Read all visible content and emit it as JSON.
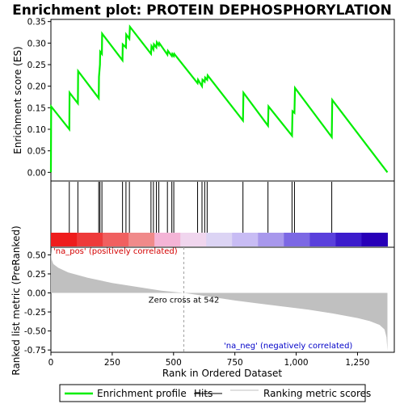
{
  "chart_data": {
    "type": "line",
    "title": "Enrichment plot: PROTEIN DEPHOSPHORYLATION",
    "xlabel": "Rank in Ordered Dataset",
    "top_panel": {
      "ylabel": "Enrichment score (ES)",
      "ylim": [
        -0.02,
        0.355
      ],
      "yticks": [
        "0.00",
        "0.05",
        "0.10",
        "0.15",
        "0.20",
        "0.25",
        "0.30",
        "0.35"
      ],
      "ytick_values": [
        0.0,
        0.05,
        0.1,
        0.15,
        0.2,
        0.25,
        0.3,
        0.35
      ],
      "series": [
        {
          "name": "Enrichment profile",
          "color": "#00ee00",
          "x": [
            0,
            1,
            75,
            76,
            110,
            111,
            195,
            196,
            200,
            201,
            208,
            209,
            292,
            293,
            306,
            307,
            320,
            322,
            408,
            410,
            418,
            420,
            430,
            432,
            440,
            442,
            475,
            477,
            493,
            495,
            501,
            503,
            598,
            600,
            616,
            618,
            627,
            629,
            637,
            639,
            783,
            785,
            885,
            887,
            983,
            985,
            993,
            995,
            1145,
            1147,
            1372
          ],
          "y": [
            0.0,
            0.153,
            0.1,
            0.185,
            0.16,
            0.235,
            0.172,
            0.222,
            0.25,
            0.28,
            0.275,
            0.322,
            0.26,
            0.297,
            0.29,
            0.32,
            0.31,
            0.338,
            0.275,
            0.293,
            0.285,
            0.297,
            0.29,
            0.302,
            0.295,
            0.3,
            0.273,
            0.282,
            0.27,
            0.275,
            0.27,
            0.275,
            0.207,
            0.215,
            0.2,
            0.215,
            0.21,
            0.22,
            0.215,
            0.225,
            0.12,
            0.185,
            0.108,
            0.153,
            0.085,
            0.142,
            0.138,
            0.196,
            0.082,
            0.168,
            0.0
          ]
        }
      ]
    },
    "hits_panel": {
      "hit_ranks": [
        75,
        110,
        195,
        200,
        208,
        292,
        306,
        320,
        408,
        418,
        430,
        440,
        475,
        493,
        501,
        598,
        616,
        627,
        637,
        783,
        885,
        983,
        993,
        1145
      ]
    },
    "bottom_panel": {
      "ylabel": "Ranked list metric (PreRanked)",
      "ylim": [
        -0.78,
        0.6
      ],
      "yticks": [
        "-0.75",
        "-0.50",
        "-0.25",
        "0.00",
        "0.25",
        "0.50"
      ],
      "ytick_values": [
        -0.75,
        -0.5,
        -0.25,
        0.0,
        0.25,
        0.5
      ],
      "zero_cross": 542,
      "metric_profile": {
        "x": [
          0,
          3,
          10,
          30,
          70,
          150,
          250,
          350,
          450,
          542,
          650,
          750,
          850,
          950,
          1050,
          1150,
          1250,
          1300,
          1340,
          1360,
          1368,
          1372
        ],
        "y": [
          0.55,
          0.44,
          0.38,
          0.33,
          0.27,
          0.2,
          0.13,
          0.08,
          0.03,
          0.0,
          -0.05,
          -0.1,
          -0.14,
          -0.18,
          -0.22,
          -0.27,
          -0.33,
          -0.37,
          -0.42,
          -0.48,
          -0.58,
          -0.76
        ]
      },
      "annotations": {
        "pos_label": "'na_pos' (positively correlated)",
        "neg_label": "'na_neg' (negatively correlated)",
        "zero_label": "Zero cross at 542"
      }
    },
    "xlim": [
      0,
      1400
    ],
    "xticks": [
      "0",
      "250",
      "500",
      "750",
      "1,000",
      "1,250"
    ],
    "xtick_values": [
      0,
      250,
      500,
      750,
      1000,
      1250
    ],
    "color_band": [
      "#ee1c1c",
      "#ee3a3a",
      "#f06060",
      "#f08a8a",
      "#f4b4d6",
      "#f0d6ee",
      "#dcd4f4",
      "#c8bcf4",
      "#a898ec",
      "#7c68e4",
      "#5a40dc",
      "#3c1ccc",
      "#2800b8"
    ],
    "legend": [
      {
        "label": "Enrichment profile",
        "color": "#00ee00"
      },
      {
        "label": "Hits",
        "color": "#000000"
      },
      {
        "label": "Ranking metric scores",
        "color": "#c0c0c0"
      }
    ]
  }
}
